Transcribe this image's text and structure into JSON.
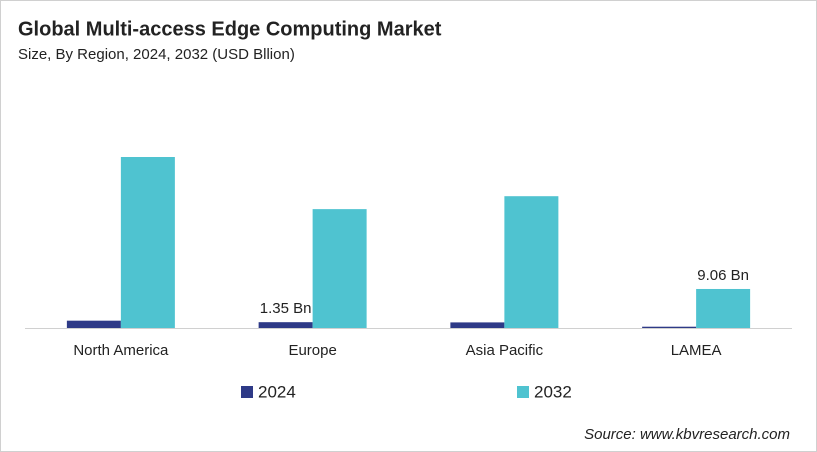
{
  "chart_data": {
    "type": "bar",
    "title": "Global Multi-access Edge Computing Market",
    "subtitle": "Size, By Region, 2024, 2032 (USD Bllion)",
    "categories": [
      "North America",
      "Europe",
      "Asia Pacific",
      "LAMEA"
    ],
    "series": [
      {
        "name": "2024",
        "color": "#2e3a87",
        "values": [
          1.7,
          1.35,
          1.3,
          0.3
        ],
        "value_labels": [
          null,
          "1.35 Bn",
          null,
          null
        ]
      },
      {
        "name": "2032",
        "color": "#4fc3d0",
        "values": [
          39.7,
          27.6,
          30.6,
          9.06
        ],
        "value_labels": [
          null,
          null,
          null,
          "9.06 Bn"
        ]
      }
    ],
    "source": "Source: www.kbvresearch.com"
  }
}
